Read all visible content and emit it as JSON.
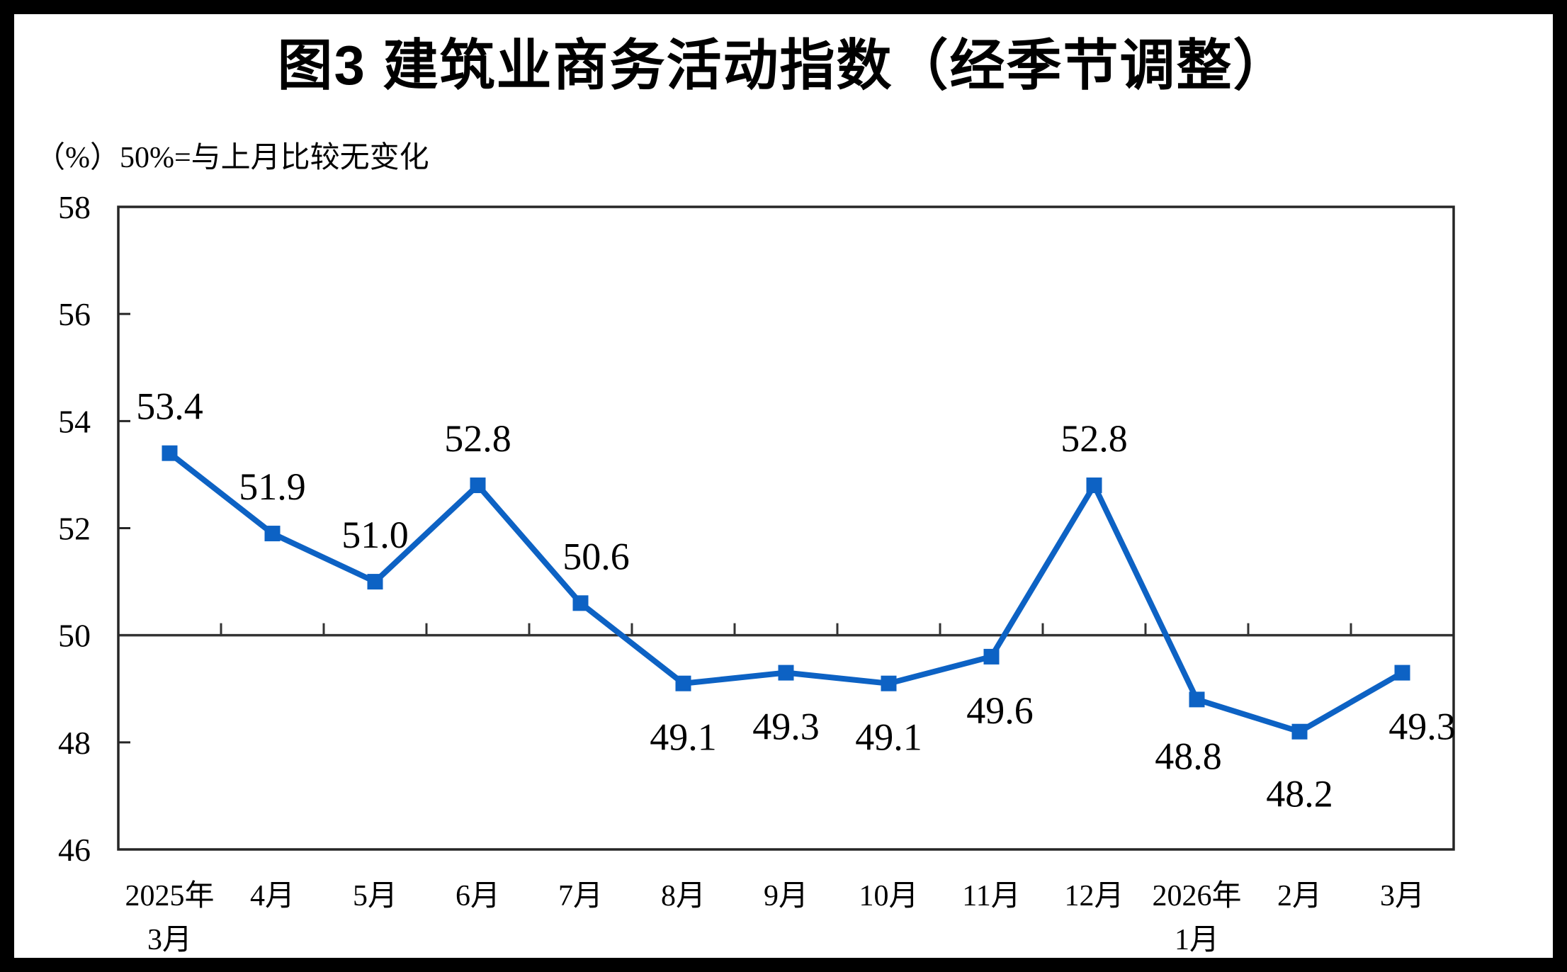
{
  "chart_data": {
    "type": "line",
    "title": "图3  建筑业商务活动指数（经季节调整）",
    "unit_note": "（%）50%=与上月比较无变化",
    "categories": [
      "2025年\n3月",
      "4月",
      "5月",
      "6月",
      "7月",
      "8月",
      "9月",
      "10月",
      "11月",
      "12月",
      "2026年\n1月",
      "2月",
      "3月"
    ],
    "series": [
      {
        "name": "建筑业商务活动指数",
        "values": [
          53.4,
          51.9,
          51.0,
          52.8,
          50.6,
          49.1,
          49.3,
          49.1,
          49.6,
          52.8,
          48.8,
          48.2,
          49.3
        ]
      }
    ],
    "ylim": [
      46,
      58
    ],
    "yticks": [
      46,
      48,
      50,
      52,
      54,
      56,
      58
    ],
    "reference_line_value": 50,
    "grid": "off",
    "legend": "none",
    "xlabel": "",
    "ylabel": "（%）",
    "label_side": [
      "above",
      "above",
      "above",
      "above",
      "above",
      "below",
      "below",
      "below",
      "below",
      "above",
      "below",
      "below",
      "below"
    ],
    "label_offsets": {
      "4": [
        22,
        0
      ],
      "8": [
        12,
        0
      ],
      "10": [
        -12,
        4
      ],
      "11": [
        0,
        12
      ],
      "12": [
        28,
        0
      ]
    },
    "colors": {
      "line": "#0D62C4",
      "axis": "#262626",
      "reference_line": "#333333",
      "text": "#000000",
      "background": "#FFFFFF",
      "frame": "#000000"
    }
  }
}
